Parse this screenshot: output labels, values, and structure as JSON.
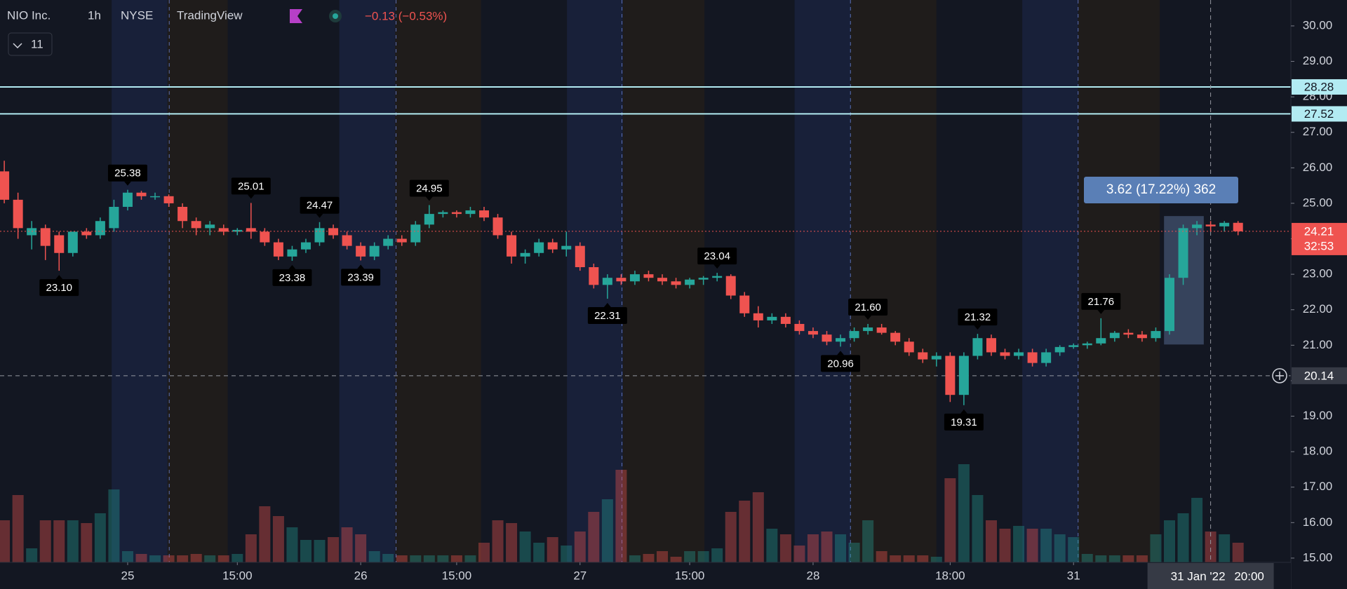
{
  "header": {
    "symbol": "NIO Inc.",
    "interval": "1h",
    "exchange": "NYSE",
    "source": "TradingView",
    "change": "−0.13 (−0.53%)",
    "indicators": "11"
  },
  "chart_data": {
    "type": "candlestick",
    "open": [
      25.9,
      25.1,
      24.1,
      24.3,
      24.1,
      23.6,
      24.2,
      24.1,
      24.3,
      24.9,
      25.3,
      25.2,
      25.2,
      24.9,
      24.5,
      24.3,
      24.3,
      24.2,
      24.3,
      24.2,
      23.9,
      23.5,
      23.7,
      23.9,
      24.3,
      24.1,
      23.8,
      23.5,
      23.8,
      24.0,
      23.9,
      24.4,
      24.7,
      24.75,
      24.7,
      24.8,
      24.6,
      24.1,
      23.5,
      23.6,
      23.9,
      23.7,
      23.8,
      23.2,
      22.7,
      22.9,
      22.8,
      23.0,
      22.9,
      22.8,
      22.7,
      22.85,
      22.9,
      22.95,
      22.4,
      21.9,
      21.7,
      21.8,
      21.6,
      21.4,
      21.3,
      21.1,
      21.2,
      21.4,
      21.5,
      21.35,
      21.1,
      20.8,
      20.6,
      20.7,
      19.6,
      20.7,
      21.2,
      20.8,
      20.7,
      20.8,
      20.5,
      20.8,
      20.95,
      21.0,
      21.05,
      21.2,
      21.35,
      21.3,
      21.2,
      21.4,
      22.9,
      24.3,
      24.4,
      24.35,
      24.45
    ],
    "high": [
      26.2,
      25.3,
      24.5,
      24.4,
      24.2,
      24.2,
      24.3,
      24.6,
      25.1,
      25.38,
      25.35,
      25.3,
      25.25,
      25.0,
      24.6,
      24.5,
      24.4,
      24.3,
      25.01,
      24.3,
      24.0,
      23.8,
      24.0,
      24.47,
      24.4,
      24.2,
      23.9,
      23.9,
      24.1,
      24.1,
      24.5,
      24.95,
      24.8,
      24.8,
      24.9,
      24.9,
      24.7,
      24.2,
      23.7,
      24.0,
      24.0,
      24.2,
      23.9,
      23.3,
      23.0,
      23.0,
      23.1,
      23.1,
      23.0,
      22.9,
      22.9,
      22.95,
      23.04,
      23.0,
      22.5,
      22.1,
      21.9,
      21.9,
      21.7,
      21.5,
      21.4,
      21.3,
      21.5,
      21.6,
      21.6,
      21.4,
      21.2,
      20.9,
      20.8,
      20.8,
      20.8,
      21.32,
      21.3,
      20.9,
      20.9,
      20.9,
      20.9,
      21.0,
      21.05,
      21.1,
      21.76,
      21.4,
      21.45,
      21.4,
      21.5,
      23.0,
      24.4,
      24.5,
      24.5,
      24.5,
      24.5
    ],
    "low": [
      25.0,
      24.0,
      23.7,
      23.4,
      23.1,
      23.5,
      24.0,
      24.0,
      24.2,
      24.8,
      25.1,
      25.1,
      24.9,
      24.3,
      24.1,
      24.1,
      24.1,
      24.1,
      24.0,
      23.8,
      23.4,
      23.38,
      23.6,
      23.8,
      24.0,
      23.7,
      23.39,
      23.4,
      23.7,
      23.8,
      23.8,
      24.3,
      24.6,
      24.6,
      24.6,
      24.5,
      24.0,
      23.3,
      23.3,
      23.5,
      23.6,
      23.5,
      23.1,
      22.6,
      22.31,
      22.7,
      22.7,
      22.8,
      22.7,
      22.6,
      22.6,
      22.7,
      22.8,
      22.3,
      21.8,
      21.5,
      21.6,
      21.5,
      21.3,
      21.2,
      21.0,
      20.96,
      21.1,
      21.3,
      21.3,
      21.0,
      20.7,
      20.5,
      20.4,
      19.4,
      19.31,
      20.6,
      20.7,
      20.6,
      20.6,
      20.4,
      20.4,
      20.7,
      20.9,
      20.9,
      21.0,
      21.1,
      21.2,
      21.1,
      21.1,
      21.3,
      22.7,
      24.1,
      24.2,
      24.2,
      24.1
    ],
    "close": [
      25.1,
      24.3,
      24.3,
      23.8,
      23.6,
      24.2,
      24.1,
      24.5,
      24.9,
      25.3,
      25.2,
      25.2,
      25.0,
      24.5,
      24.3,
      24.4,
      24.2,
      24.25,
      24.2,
      23.9,
      23.5,
      23.7,
      23.9,
      24.3,
      24.1,
      23.8,
      23.5,
      23.8,
      24.0,
      23.9,
      24.4,
      24.7,
      24.75,
      24.7,
      24.8,
      24.6,
      24.1,
      23.5,
      23.6,
      23.9,
      23.7,
      23.8,
      23.2,
      22.7,
      22.9,
      22.8,
      23.0,
      22.9,
      22.8,
      22.7,
      22.85,
      22.9,
      22.95,
      22.4,
      21.9,
      21.7,
      21.8,
      21.6,
      21.4,
      21.3,
      21.1,
      21.2,
      21.4,
      21.5,
      21.35,
      21.1,
      20.8,
      20.6,
      20.7,
      19.6,
      20.7,
      21.2,
      20.8,
      20.7,
      20.8,
      20.5,
      20.8,
      20.95,
      21.0,
      21.05,
      21.2,
      21.35,
      21.3,
      21.2,
      21.4,
      22.9,
      24.3,
      24.4,
      24.35,
      24.45,
      24.21
    ],
    "volume": [
      30,
      48,
      10,
      30,
      30,
      30,
      28,
      35,
      52,
      8,
      6,
      5,
      5,
      5,
      6,
      5,
      5,
      6,
      20,
      40,
      33,
      25,
      16,
      16,
      18,
      25,
      20,
      8,
      6,
      5,
      5,
      5,
      5,
      5,
      5,
      14,
      30,
      28,
      22,
      14,
      18,
      12,
      22,
      36,
      45,
      66,
      5,
      6,
      8,
      4,
      8,
      8,
      10,
      36,
      44,
      50,
      24,
      20,
      12,
      20,
      22,
      20,
      14,
      30,
      8,
      5,
      5,
      5,
      4,
      60,
      70,
      48,
      30,
      24,
      26,
      24,
      24,
      20,
      18,
      6,
      5,
      5,
      5,
      5,
      20,
      30,
      35,
      46,
      22,
      20,
      14
    ],
    "vlim": [
      0,
      100
    ],
    "high_labels": [
      null,
      null,
      null,
      null,
      null,
      null,
      null,
      null,
      null,
      "25.38",
      null,
      null,
      null,
      null,
      null,
      null,
      null,
      null,
      "25.01",
      null,
      null,
      null,
      null,
      "24.47",
      null,
      null,
      null,
      null,
      null,
      null,
      null,
      "24.95",
      null,
      null,
      null,
      null,
      null,
      null,
      null,
      null,
      null,
      null,
      null,
      null,
      null,
      null,
      null,
      null,
      null,
      null,
      null,
      null,
      "23.04",
      null,
      null,
      null,
      null,
      null,
      null,
      null,
      null,
      null,
      null,
      "21.60",
      null,
      null,
      null,
      null,
      null,
      null,
      null,
      "21.32",
      null,
      null,
      null,
      null,
      null,
      null,
      null,
      null,
      "21.76",
      null,
      null,
      null,
      null,
      null,
      null,
      null,
      null,
      null,
      null
    ],
    "low_labels": [
      null,
      null,
      null,
      null,
      "23.10",
      null,
      null,
      null,
      null,
      null,
      null,
      null,
      null,
      null,
      null,
      null,
      null,
      null,
      null,
      null,
      null,
      "23.38",
      null,
      null,
      null,
      null,
      "23.39",
      null,
      null,
      null,
      null,
      null,
      null,
      null,
      null,
      null,
      null,
      null,
      null,
      null,
      null,
      null,
      null,
      null,
      "22.31",
      null,
      null,
      null,
      null,
      null,
      null,
      null,
      null,
      null,
      null,
      null,
      null,
      null,
      null,
      null,
      null,
      "20.96",
      null,
      null,
      null,
      null,
      null,
      null,
      null,
      null,
      "19.31",
      null,
      null,
      null,
      null,
      null,
      null,
      null,
      null,
      null,
      null,
      null,
      null,
      null,
      null,
      null,
      null,
      null,
      null,
      null,
      null
    ],
    "up_color": "#26a69a",
    "down_color": "#ef5350",
    "ylim": [
      14.88,
      30.73
    ],
    "yticks": [
      {
        "value": 15,
        "label": "15.00"
      },
      {
        "value": 16,
        "label": "16.00"
      },
      {
        "value": 17,
        "label": "17.00"
      },
      {
        "value": 18,
        "label": "18.00"
      },
      {
        "value": 19,
        "label": "19.00"
      },
      {
        "value": 20,
        "label": "20.00"
      },
      {
        "value": 21,
        "label": "21.00"
      },
      {
        "value": 22,
        "label": "22.00"
      },
      {
        "value": 23,
        "label": "23.00"
      },
      {
        "value": 24,
        "label": "24.00"
      },
      {
        "value": 25,
        "label": "25.00"
      },
      {
        "value": 26,
        "label": "26.00"
      },
      {
        "value": 27,
        "label": "27.00"
      },
      {
        "value": 28,
        "label": "28.00"
      },
      {
        "value": 29,
        "label": "29.00"
      },
      {
        "value": 30,
        "label": "30.00"
      }
    ],
    "xticks": [
      {
        "value": 9,
        "label": "25"
      },
      {
        "value": 17,
        "label": "15:00"
      },
      {
        "value": 26,
        "label": "26"
      },
      {
        "value": 33,
        "label": "15:00"
      },
      {
        "value": 42,
        "label": "27"
      },
      {
        "value": 50,
        "label": "15:00"
      },
      {
        "value": 59,
        "label": "28"
      },
      {
        "value": 69,
        "label": "18:00"
      },
      {
        "value": 78,
        "label": "31"
      }
    ],
    "hlines": [
      28.28,
      27.52
    ],
    "crosshair_price": 20.14,
    "crosshair_date": "31 Jan '22",
    "crosshair_time": "20:00",
    "countdown": "32:53",
    "measure": {
      "label": "3.62 (17.22%) 362",
      "from": 21.02,
      "to": 24.64
    }
  }
}
